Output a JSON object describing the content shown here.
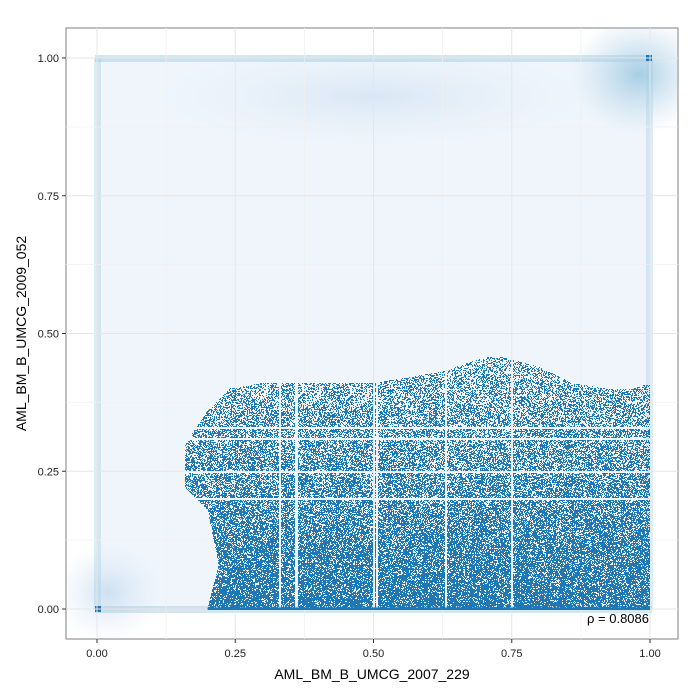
{
  "chart_data": {
    "type": "scatter",
    "style": "smoothed density scatter with outlying points drawn as dots",
    "xlabel": "AML_BM_B_UMCG_2007_229",
    "ylabel": "AML_BM_B_UMCG_2009_052",
    "xlim": [
      0.0,
      1.0
    ],
    "ylim": [
      0.0,
      1.0
    ],
    "x_ticks": [
      "0.00",
      "0.25",
      "0.50",
      "0.75",
      "1.00"
    ],
    "y_ticks": [
      "0.00",
      "0.25",
      "0.50",
      "0.75",
      "1.00"
    ],
    "grid": true,
    "legend": "none",
    "annotation": "ρ = 0.8086",
    "point_color": "#1f77b4",
    "density_color": "#c6dbef",
    "point_region": {
      "description": "dense scattered points below the upper boundary",
      "boundary": [
        {
          "x": 0.2,
          "y": 0.0
        },
        {
          "x": 0.22,
          "y": 0.08
        },
        {
          "x": 0.2,
          "y": 0.18
        },
        {
          "x": 0.16,
          "y": 0.22
        },
        {
          "x": 0.16,
          "y": 0.3
        },
        {
          "x": 0.2,
          "y": 0.36
        },
        {
          "x": 0.24,
          "y": 0.4
        },
        {
          "x": 0.3,
          "y": 0.41
        },
        {
          "x": 0.5,
          "y": 0.41
        },
        {
          "x": 0.62,
          "y": 0.43
        },
        {
          "x": 0.68,
          "y": 0.45
        },
        {
          "x": 0.72,
          "y": 0.46
        },
        {
          "x": 0.8,
          "y": 0.44
        },
        {
          "x": 0.86,
          "y": 0.41
        },
        {
          "x": 0.92,
          "y": 0.4
        },
        {
          "x": 0.97,
          "y": 0.4
        },
        {
          "x": 1.0,
          "y": 0.41
        },
        {
          "x": 1.0,
          "y": 0.0
        }
      ]
    }
  }
}
